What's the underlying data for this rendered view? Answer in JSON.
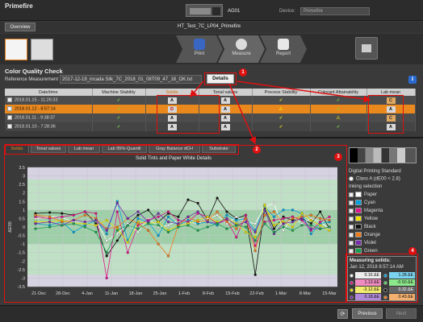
{
  "app": {
    "brand": "Primefire",
    "device_id": "AG01",
    "device_label": "Device:",
    "device_value": "Primefire",
    "overview_label": "Overview",
    "job_title": "HT_Test_7C_LP04_Primefire"
  },
  "workflow": {
    "steps": [
      {
        "label": "Print",
        "color": "#3b67c4"
      },
      {
        "label": "Measure",
        "color": "#dcdcdc"
      },
      {
        "label": "Report",
        "color": "#e8e8e8"
      }
    ]
  },
  "cqc": {
    "title": "Color Quality Check",
    "ref_label": "Reference Measurement",
    "ref_value": "2017-12-19_incada Silk_7C_2018_01_08T09_47_18_OK.txt",
    "details_label": "Details",
    "info": "i"
  },
  "table": {
    "headers": [
      "Date/time",
      "Machine Stability",
      "Solids",
      "Tonal values",
      "Process Stability",
      "Colorant Attainability",
      "Lab mean"
    ],
    "rows": [
      {
        "dt": "2018.01.15 - 11:26:33",
        "machine": "✓",
        "solids": "A",
        "tonal": "A",
        "process": "✓",
        "colorant": "✓",
        "lab": "C"
      },
      {
        "dt": "2018.01.12 - 8:57:14",
        "machine": "✓",
        "solids": "D",
        "tonal": "A",
        "process": "⚠",
        "colorant": "✓",
        "lab": "A"
      },
      {
        "dt": "2018.01.11 - 9:38:37",
        "machine": "✓",
        "solids": "A",
        "tonal": "A",
        "process": "✓",
        "colorant": "⚠",
        "lab": "C"
      },
      {
        "dt": "2018.01.10 - 7:28:36",
        "machine": "✓",
        "solids": "A",
        "tonal": "A",
        "process": "✓",
        "colorant": "✓",
        "lab": "A"
      }
    ]
  },
  "tabs": [
    "Solids",
    "Tonal values",
    "Lab mean",
    "Lab 95%-Quantil",
    "Gray Balance dCH",
    "Substrate"
  ],
  "side": {
    "dps": "Digital Printing Standard",
    "class_label": "Class A (dE00 < 2.8)",
    "ink_head": "Inking selection",
    "inks": [
      {
        "name": "Paper",
        "color": "#ffffff"
      },
      {
        "name": "Cyan",
        "color": "#00a0e0"
      },
      {
        "name": "Magenta",
        "color": "#e0148c"
      },
      {
        "name": "Yellow",
        "color": "#f0e000"
      },
      {
        "name": "Black",
        "color": "#111111"
      },
      {
        "name": "Orange",
        "color": "#f07a1a"
      },
      {
        "name": "Violet",
        "color": "#7a2ab0"
      },
      {
        "name": "Green",
        "color": "#18a050"
      }
    ]
  },
  "measuring": {
    "title": "Measuring solids:",
    "time": "Jan 12, 2018 8:57:14 AM",
    "values": [
      {
        "v": "0.16 ΔE",
        "color": "#ffffff"
      },
      {
        "v": "1.28 ΔE",
        "color": "#00a0e0"
      },
      {
        "v": "1.13 ΔE",
        "color": "#e0148c"
      },
      {
        "v": "-0.50 ΔE",
        "color": "#5bd46a"
      },
      {
        "v": "-3.12 ΔE",
        "color": "#f0e000"
      },
      {
        "v": "0.32 ΔE",
        "color": "#111111"
      },
      {
        "v": "0.18 ΔE",
        "color": "#7a2ab0"
      },
      {
        "v": "0.43 ΔE",
        "color": "#f07a1a"
      }
    ]
  },
  "buttons": {
    "refresh": "⟳",
    "previous": "Previous",
    "next": "Next"
  },
  "callouts": [
    "1",
    "2",
    "3",
    "4"
  ],
  "chart_data": {
    "type": "line",
    "title": "Solid Tints and Paper White Details",
    "ylabel": "ΔE00",
    "ylim": [
      -3.5,
      3.5
    ],
    "yticks": [
      "3.5",
      "3",
      "2.5",
      "2",
      "1.5",
      "1",
      "0.5",
      "0",
      "-0.5",
      "-1",
      "-1.5",
      "-2",
      "-2.5",
      "-3",
      "-3.5"
    ],
    "xticks": [
      "21-Dec",
      "28-Dec",
      "4-Jan",
      "11-Jan",
      "18-Jan",
      "25-Jan",
      "1-Feb",
      "8-Feb",
      "15-Feb",
      "22-Feb",
      "1-Mar",
      "8-Mar",
      "15-Mar"
    ],
    "series": [
      {
        "color": "#111111",
        "values": [
          0.8,
          0.85,
          0.8,
          0.7,
          0.9,
          0.2,
          -1.7,
          -0.8,
          0.1,
          0.7,
          1,
          0.3,
          0.8,
          0.6,
          1.6,
          1.4,
          0.4,
          1.7,
          0.9,
          0.5,
          0.7,
          -2.8,
          1.1,
          -0.1,
          0.6,
          0.4,
          0.5,
          0.2,
          0.9,
          -0.1
        ]
      },
      {
        "color": "#ffffff",
        "values": [
          0.5,
          0.6,
          0.55,
          0.3,
          0.35,
          0.4,
          -0.8,
          -0.4,
          0.2,
          -0.3,
          0.5,
          0,
          0.1,
          0.4,
          0.3,
          0.2,
          0.5,
          0.7,
          0.2,
          0.6,
          0.3,
          0.2,
          1.2,
          1.4,
          -0.2,
          0.6,
          0.2,
          0.5,
          0.3,
          -0.1
        ]
      },
      {
        "color": "#00a0e0",
        "values": [
          0.2,
          0.1,
          0.3,
          -0.3,
          0.1,
          0.4,
          -0.4,
          1.5,
          -0.8,
          0.5,
          0.3,
          -0.5,
          0.6,
          0.1,
          0.4,
          0.2,
          0.3,
          0.1,
          0.7,
          0.4,
          0.5,
          -0.2,
          1.2,
          0.6,
          1,
          1,
          0.8,
          -0.4,
          0.2,
          0.3
        ]
      },
      {
        "color": "#e0148c",
        "values": [
          0.6,
          0.5,
          0.6,
          0.7,
          0.9,
          0.8,
          -3,
          0.9,
          -1.5,
          0.1,
          0.4,
          0.6,
          0.9,
          0.4,
          0.3,
          0.8,
          0.6,
          0.2,
          0.4,
          -0.6,
          0.7,
          -1.1,
          0.3,
          0.4,
          0.5,
          0.6,
          0.4,
          -0.2,
          0.3,
          0.6
        ]
      },
      {
        "color": "#f0e000",
        "values": [
          0.3,
          0.3,
          0.4,
          0.2,
          0.2,
          0.1,
          0.4,
          -0.1,
          -0.9,
          0.3,
          0.2,
          0.3,
          -0.2,
          0.1,
          0.2,
          0.4,
          0.6,
          0.3,
          0.5,
          0.2,
          -0.3,
          -0.6,
          1.3,
          0.1,
          0.3,
          0,
          0.8,
          0.4,
          0.1,
          -0.2
        ]
      },
      {
        "color": "#f07a1a",
        "values": [
          0.7,
          0.6,
          0.3,
          0.4,
          0.7,
          0.5,
          -0.1,
          0,
          0.5,
          0.2,
          -0.2,
          -1,
          -1.7,
          0.1,
          0.6,
          0.3,
          0.4,
          0.9,
          0.3,
          -0.1,
          0.5,
          -1.4,
          0.7,
          0.9,
          0.2,
          0.5,
          0.6,
          0.7,
          0.5,
          0.4
        ]
      },
      {
        "color": "#7a2ab0",
        "values": [
          0.2,
          0.3,
          0.1,
          0.4,
          0.3,
          0.4,
          -0.2,
          1.4,
          0.5,
          0.9,
          0.3,
          0.8,
          0.3,
          0.2,
          0.6,
          0.9,
          0.3,
          0.2,
          0.5,
          0.1,
          0.3,
          -0.3,
          1,
          -0.4,
          0.2,
          0.3,
          0.5,
          -0.1,
          -0.1,
          0
        ]
      },
      {
        "color": "#18a050",
        "values": [
          -0.1,
          0,
          0.1,
          0.2,
          0,
          -0.3,
          -1.5,
          -0.2,
          0.1,
          -0.1,
          0.2,
          0.1,
          -0.3,
          0,
          0.1,
          -0.2,
          0,
          0.2,
          -0.1,
          0.1,
          0,
          -0.8,
          0.2,
          -0.3,
          0,
          -0.2,
          0.1,
          0.1,
          -0.1,
          0
        ]
      }
    ]
  }
}
